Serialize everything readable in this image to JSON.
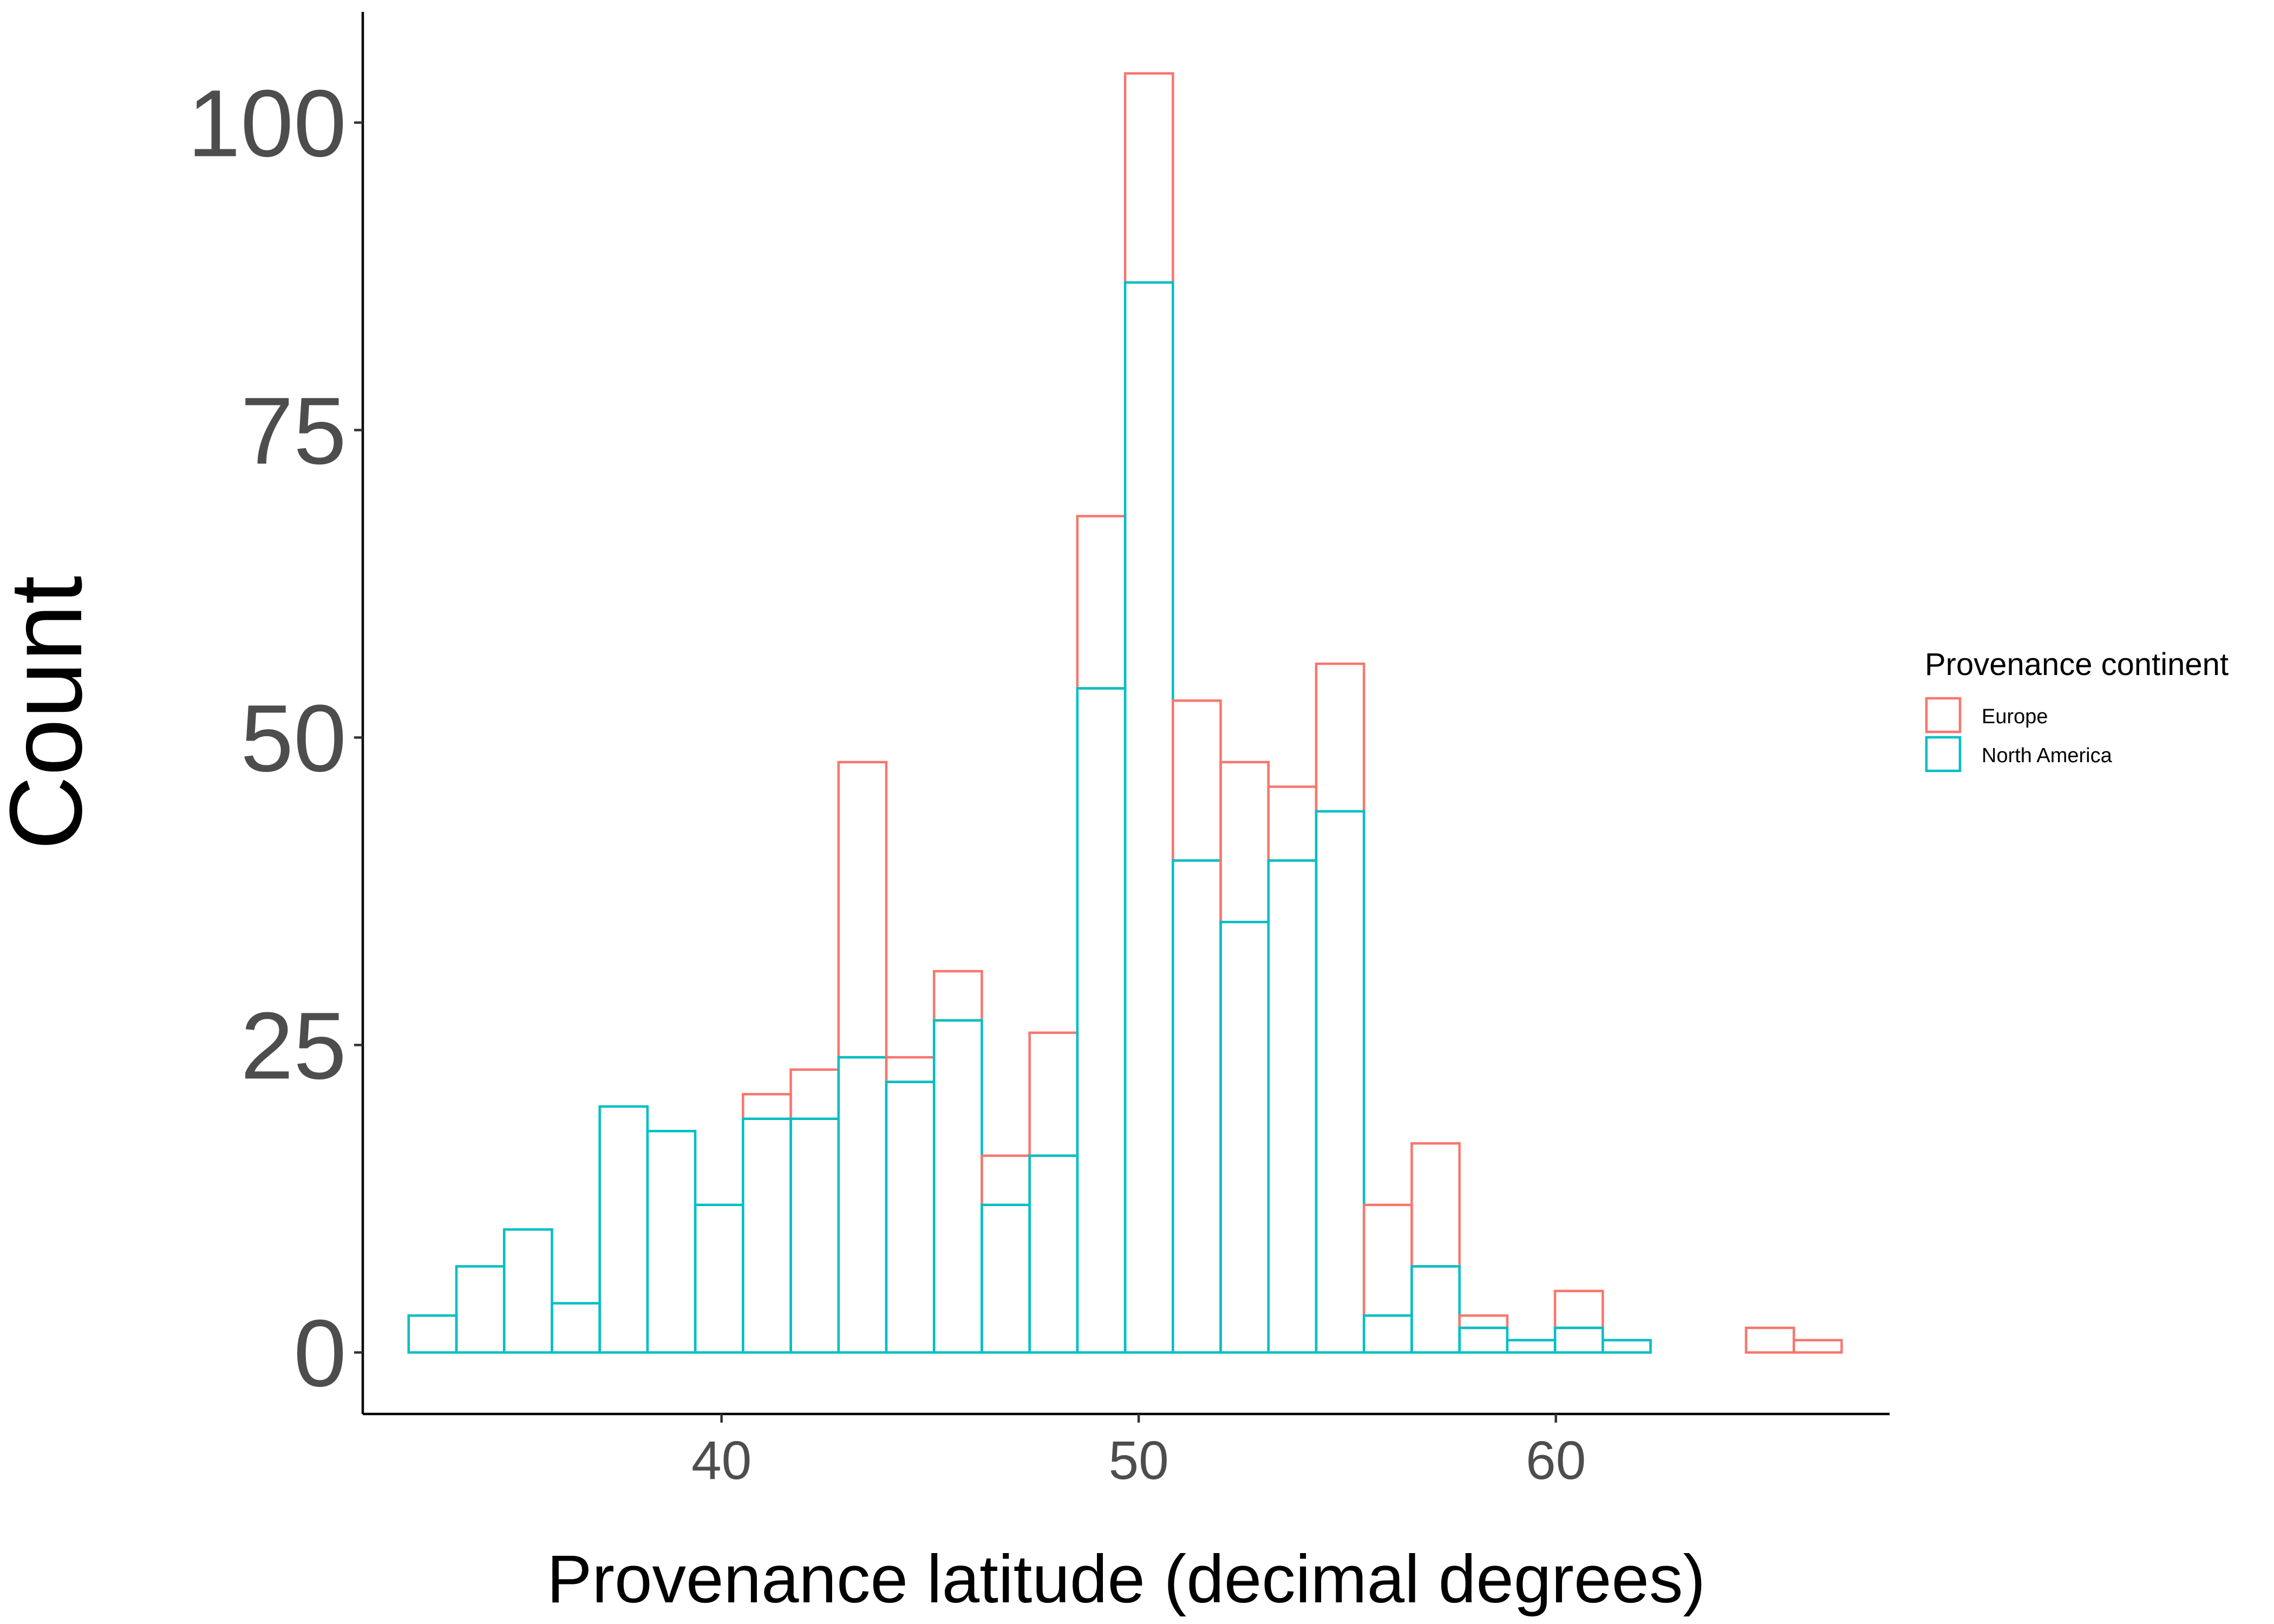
{
  "chart_data": {
    "type": "bar",
    "subtype": "stacked-histogram",
    "title": "",
    "xlabel": "Provenance latitude (decimal degrees)",
    "ylabel": "Count",
    "xlim": [
      31.4,
      68.0
    ],
    "ylim": [
      -5,
      109
    ],
    "x_ticks": [
      40,
      50,
      60
    ],
    "y_ticks": [
      0,
      25,
      50,
      75,
      100
    ],
    "grid": false,
    "legend": {
      "title": "Provenance continent",
      "placement": "right"
    },
    "bin_width": 1.145,
    "bin_start": 32.5,
    "series": [
      {
        "name": "North America",
        "color": "#00BFC4",
        "values": [
          3,
          7,
          10,
          4,
          20,
          18,
          12,
          19,
          19,
          24,
          22,
          27,
          12,
          16,
          54,
          87,
          40,
          35,
          40,
          44,
          3,
          7,
          2,
          1,
          2,
          1,
          0,
          0,
          0,
          0
        ]
      },
      {
        "name": "Europe",
        "color": "#F8766D",
        "values": [
          0,
          0,
          0,
          0,
          0,
          0,
          0,
          2,
          4,
          24,
          2,
          4,
          4,
          10,
          14,
          17,
          13,
          13,
          6,
          12,
          9,
          10,
          1,
          0,
          3,
          0,
          0,
          0,
          2,
          1
        ]
      }
    ]
  }
}
